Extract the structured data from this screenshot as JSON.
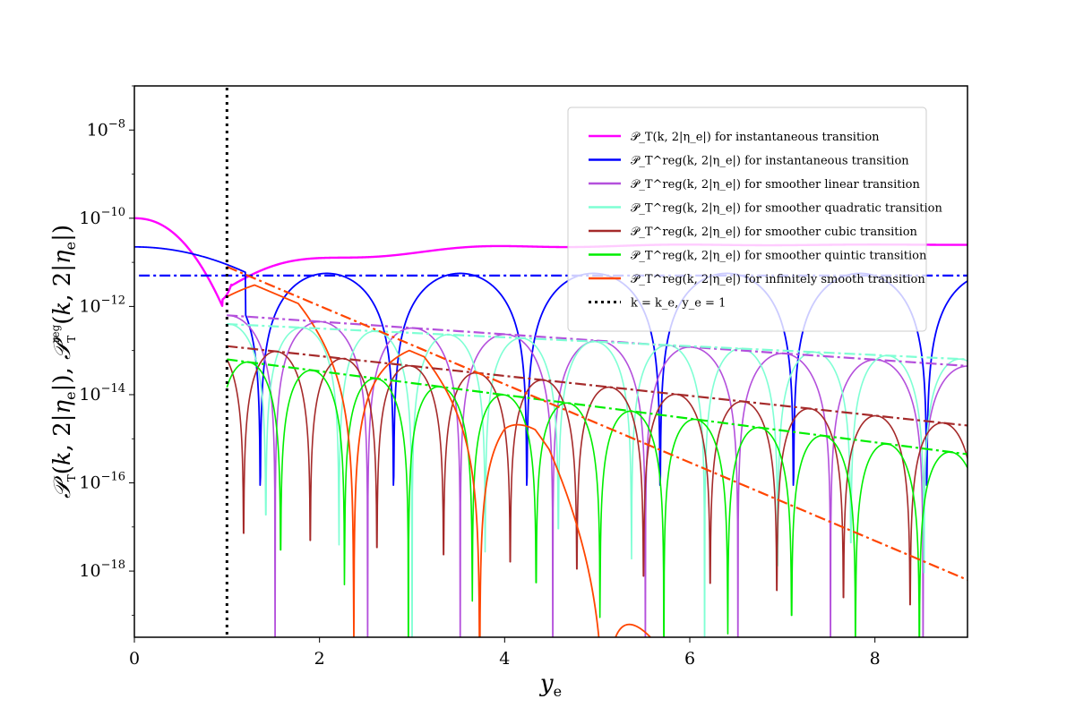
{
  "chart_data": {
    "type": "line",
    "xlabel": "y_e",
    "ylabel": "𝒫_T(k, 2|η_e|), 𝒫_T^reg(k, 2|η_e|)",
    "xlim": [
      0,
      9
    ],
    "ylim_log10": [
      -19.5,
      -7.0
    ],
    "yscale": "log",
    "x_ticks": [
      0,
      2,
      4,
      6,
      8
    ],
    "y_ticks": [
      {
        "base": "10",
        "exp": "−8",
        "log10": -8
      },
      {
        "base": "10",
        "exp": "−10",
        "log10": -10
      },
      {
        "base": "10",
        "exp": "−12",
        "log10": -12
      },
      {
        "base": "10",
        "exp": "−14",
        "log10": -14
      },
      {
        "base": "10",
        "exp": "−16",
        "log10": -16
      },
      {
        "base": "10",
        "exp": "−18",
        "log10": -18
      }
    ],
    "legend_position": "top-right",
    "series": [
      {
        "name": "𝒫_T(k, 2|η_e|) for instantaneous transition",
        "color": "#ff00ff",
        "style": "solid"
      },
      {
        "name": "𝒫_T^reg(k, 2|η_e|) for instantaneous transition",
        "color": "#0000ff",
        "style": "solid"
      },
      {
        "name": "𝒫_T^reg(k, 2|η_e|) for smoother linear transition",
        "color": "#b450dc",
        "style": "solid"
      },
      {
        "name": "𝒫_T^reg(k, 2|η_e|) for smoother quadratic transition",
        "color": "#7fffd4",
        "style": "solid"
      },
      {
        "name": "𝒫_T^reg(k, 2|η_e|) for smoother cubic transition",
        "color": "#a52a2a",
        "style": "solid"
      },
      {
        "name": "𝒫_T^reg(k, 2|η_e|) for smoother quintic transition",
        "color": "#00ee00",
        "style": "solid"
      },
      {
        "name": "𝒫_T^reg(k, 2|η_e|) for infinitely smooth transition",
        "color": "#ff4500",
        "style": "solid"
      },
      {
        "name": "k = k_e, y_e = 1",
        "color": "#000000",
        "style": "dotted",
        "x": 1
      }
    ],
    "envelopes": [
      {
        "color": "#0000ff",
        "points": [
          [
            0.05,
            -11.3
          ],
          [
            9,
            -11.3
          ]
        ]
      },
      {
        "color": "#b450dc",
        "points": [
          [
            1,
            -12.2
          ],
          [
            9,
            -13.35
          ]
        ]
      },
      {
        "color": "#7fffd4",
        "points": [
          [
            1,
            -12.4
          ],
          [
            9,
            -13.2
          ]
        ]
      },
      {
        "color": "#a52a2a",
        "points": [
          [
            1,
            -12.9
          ],
          [
            9,
            -14.7
          ]
        ]
      },
      {
        "color": "#00ee00",
        "points": [
          [
            1,
            -13.2
          ],
          [
            9,
            -15.35
          ]
        ]
      },
      {
        "color": "#ff4500",
        "points": [
          [
            1,
            -11.1
          ],
          [
            9,
            -18.2
          ]
        ]
      }
    ]
  }
}
